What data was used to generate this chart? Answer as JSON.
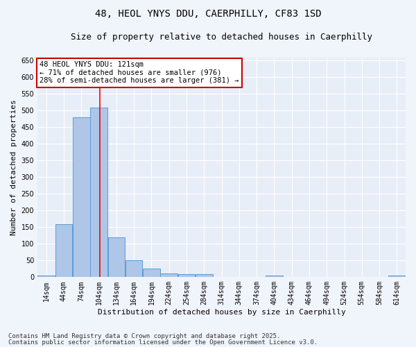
{
  "title1": "48, HEOL YNYS DDU, CAERPHILLY, CF83 1SD",
  "title2": "Size of property relative to detached houses in Caerphilly",
  "xlabel": "Distribution of detached houses by size in Caerphilly",
  "ylabel": "Number of detached properties",
  "bin_starts": [
    14,
    44,
    74,
    104,
    134,
    164,
    194,
    224,
    254,
    284,
    314,
    344,
    374,
    404,
    434,
    464,
    494,
    524,
    554,
    584,
    614
  ],
  "bin_width": 30,
  "bar_heights": [
    5,
    160,
    480,
    510,
    120,
    50,
    25,
    12,
    8,
    8,
    0,
    0,
    0,
    5,
    0,
    0,
    0,
    0,
    0,
    0,
    5
  ],
  "bar_color": "#aec6e8",
  "bar_edge_color": "#5b9bd5",
  "red_line_x": 121,
  "ylim": [
    0,
    660
  ],
  "yticks": [
    0,
    50,
    100,
    150,
    200,
    250,
    300,
    350,
    400,
    450,
    500,
    550,
    600,
    650
  ],
  "annotation_text": "48 HEOL YNYS DDU: 121sqm\n← 71% of detached houses are smaller (976)\n28% of semi-detached houses are larger (381) →",
  "annotation_box_color": "#ffffff",
  "annotation_box_edge_color": "#cc0000",
  "footer1": "Contains HM Land Registry data © Crown copyright and database right 2025.",
  "footer2": "Contains public sector information licensed under the Open Government Licence v3.0.",
  "fig_bg_color": "#f0f4fb",
  "plot_bg_color": "#e8eef8",
  "title_fontsize": 10,
  "subtitle_fontsize": 9,
  "axis_label_fontsize": 8,
  "tick_fontsize": 7,
  "annotation_fontsize": 7.5,
  "footer_fontsize": 6.5
}
